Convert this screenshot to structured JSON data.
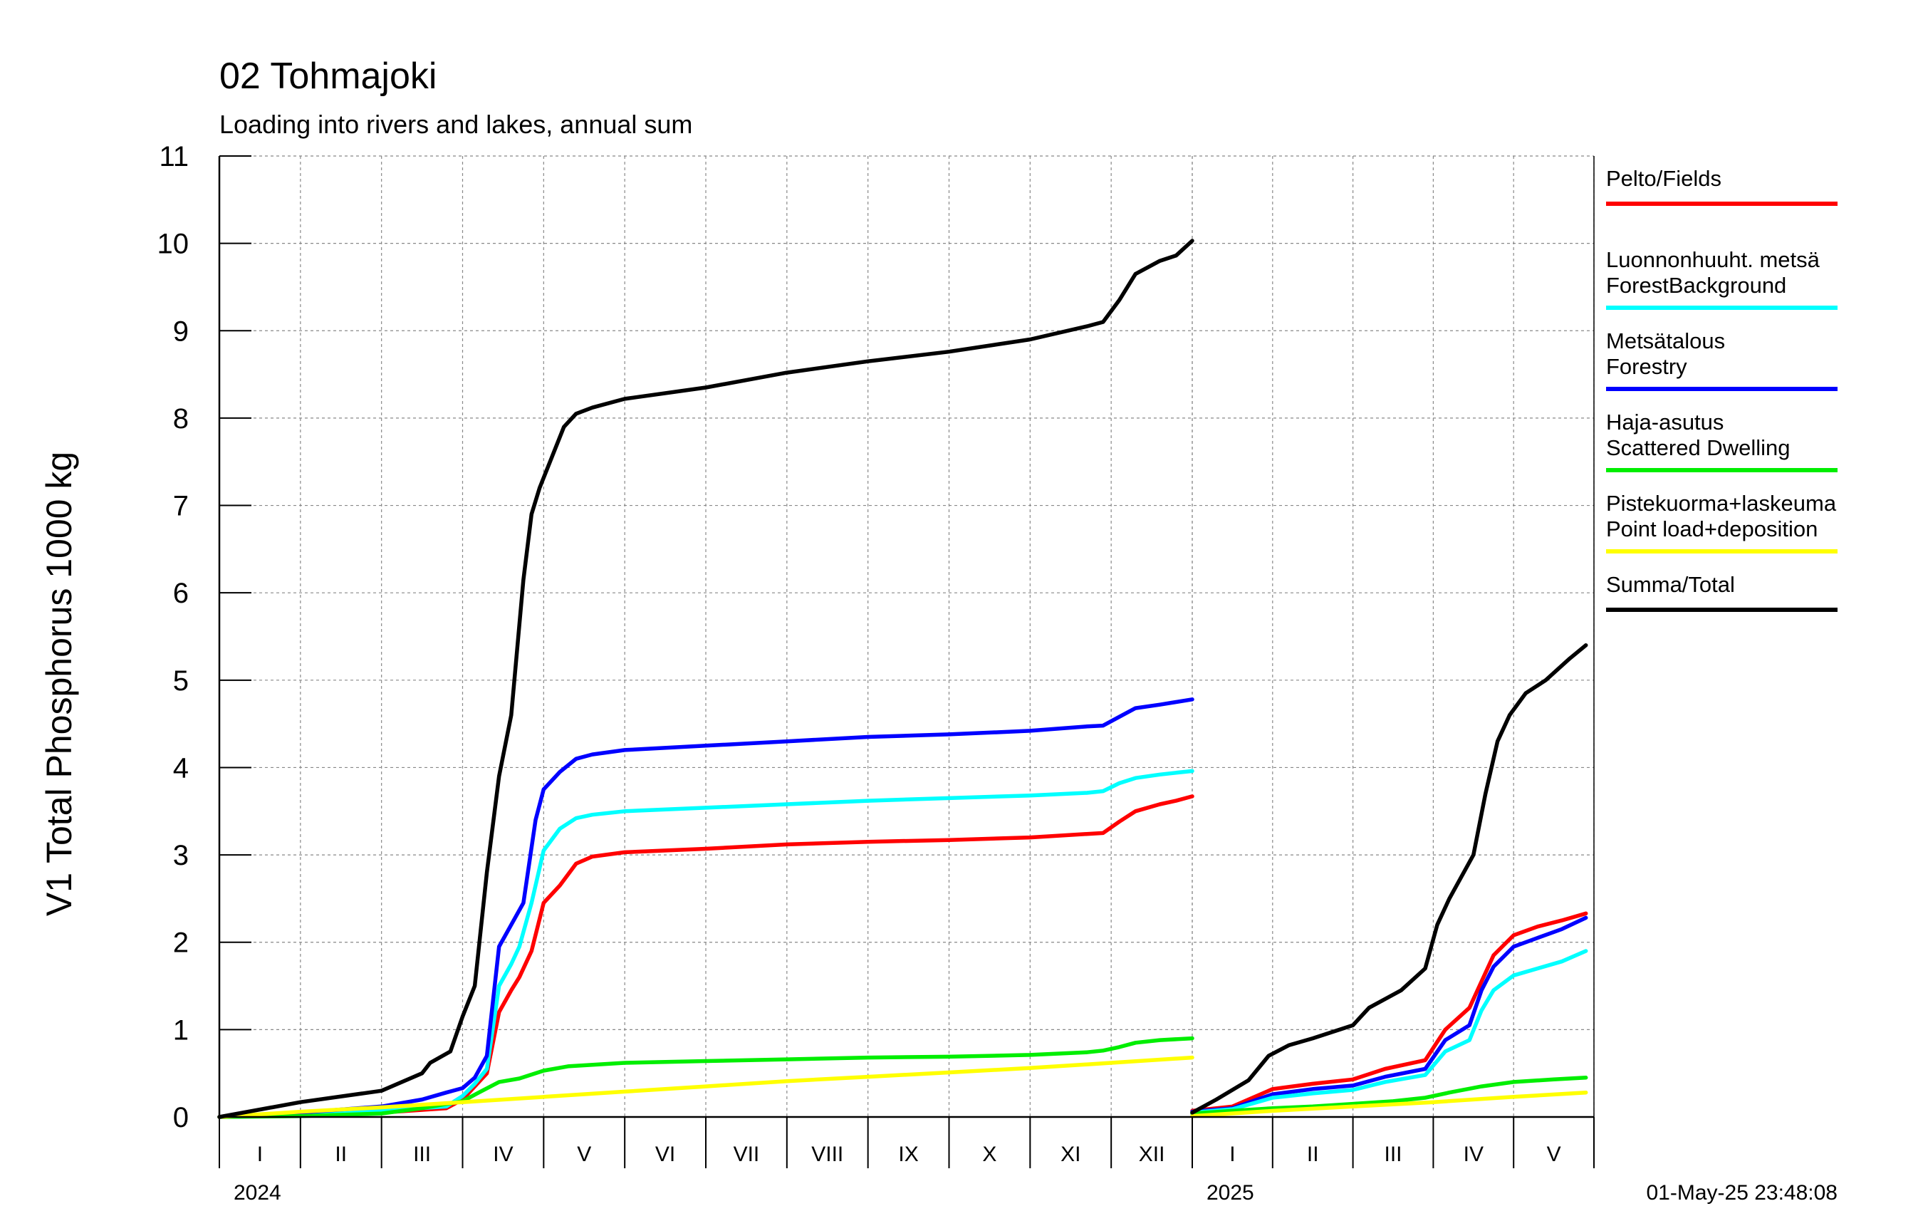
{
  "chart_data": {
    "type": "line",
    "title": "02 Tohmajoki",
    "subtitle": "Loading into rivers and lakes, annual sum",
    "ylabel": "V1 Total Phosphorus 1000 kg",
    "ylim": [
      0,
      11
    ],
    "yticks": [
      0,
      1,
      2,
      3,
      4,
      5,
      6,
      7,
      8,
      9,
      10,
      11
    ],
    "grid": true,
    "legend_position": "right",
    "timestamp": "01-May-25 23:48:08",
    "panels": [
      {
        "year": "2024",
        "months": [
          "I",
          "II",
          "III",
          "IV",
          "V",
          "VI",
          "VII",
          "VIII",
          "IX",
          "X",
          "XI",
          "XII"
        ],
        "series": [
          {
            "key": "fields",
            "color": "#ff0000",
            "x": [
              0,
              1,
              2,
              2.8,
              3.0,
              3.15,
              3.3,
              3.45,
              3.6,
              3.7,
              3.85,
              4.0,
              4.2,
              4.4,
              4.6,
              5,
              6,
              7,
              8,
              9,
              10,
              10.7,
              10.9,
              11.1,
              11.3,
              11.6,
              11.8,
              12
            ],
            "y": [
              0,
              0.02,
              0.05,
              0.1,
              0.2,
              0.35,
              0.5,
              1.2,
              1.45,
              1.6,
              1.9,
              2.45,
              2.65,
              2.9,
              2.98,
              3.03,
              3.07,
              3.12,
              3.15,
              3.17,
              3.2,
              3.24,
              3.25,
              3.38,
              3.5,
              3.58,
              3.62,
              3.67
            ]
          },
          {
            "key": "forest_background",
            "color": "#00ffff",
            "x": [
              0,
              1,
              2,
              2.8,
              3.0,
              3.15,
              3.3,
              3.45,
              3.6,
              3.7,
              3.85,
              4.0,
              4.2,
              4.4,
              4.6,
              5,
              6,
              7,
              8,
              9,
              10,
              10.7,
              10.9,
              11.1,
              11.3,
              11.6,
              11.8,
              12
            ],
            "y": [
              0,
              0.03,
              0.07,
              0.12,
              0.24,
              0.38,
              0.55,
              1.5,
              1.75,
              1.95,
              2.45,
              3.05,
              3.3,
              3.42,
              3.46,
              3.5,
              3.54,
              3.58,
              3.62,
              3.65,
              3.68,
              3.71,
              3.73,
              3.82,
              3.88,
              3.92,
              3.94,
              3.96
            ]
          },
          {
            "key": "forestry",
            "color": "#0000ff",
            "x": [
              0,
              1,
              2,
              2.5,
              2.8,
              3.0,
              3.15,
              3.3,
              3.45,
              3.6,
              3.75,
              3.9,
              4.0,
              4.2,
              4.4,
              4.6,
              5,
              6,
              7,
              8,
              9,
              10,
              10.7,
              10.9,
              11.1,
              11.3,
              11.6,
              11.8,
              12
            ],
            "y": [
              0,
              0.05,
              0.12,
              0.2,
              0.28,
              0.33,
              0.45,
              0.7,
              1.95,
              2.2,
              2.45,
              3.4,
              3.75,
              3.95,
              4.1,
              4.15,
              4.2,
              4.25,
              4.3,
              4.35,
              4.38,
              4.42,
              4.47,
              4.48,
              4.58,
              4.68,
              4.72,
              4.75,
              4.78
            ]
          },
          {
            "key": "scattered_dwelling",
            "color": "#00ee00",
            "x": [
              0,
              1,
              2,
              2.5,
              3.0,
              3.2,
              3.45,
              3.7,
              4.0,
              4.3,
              5,
              6,
              7,
              8,
              9,
              10,
              10.7,
              10.9,
              11.1,
              11.3,
              11.6,
              12
            ],
            "y": [
              0,
              0.01,
              0.04,
              0.1,
              0.18,
              0.28,
              0.4,
              0.44,
              0.53,
              0.58,
              0.62,
              0.64,
              0.66,
              0.68,
              0.69,
              0.71,
              0.74,
              0.76,
              0.8,
              0.85,
              0.88,
              0.9
            ]
          },
          {
            "key": "point_load",
            "color": "#ffff00",
            "x": [
              0,
              1,
              2,
              3,
              4,
              5,
              6,
              7,
              8,
              9,
              10,
              11,
              12
            ],
            "y": [
              0,
              0.06,
              0.11,
              0.17,
              0.23,
              0.29,
              0.35,
              0.41,
              0.46,
              0.51,
              0.56,
              0.62,
              0.68
            ]
          },
          {
            "key": "total",
            "color": "#000000",
            "x": [
              0,
              1,
              2,
              2.5,
              2.6,
              2.85,
              3.0,
              3.15,
              3.3,
              3.45,
              3.6,
              3.75,
              3.85,
              3.95,
              4.1,
              4.25,
              4.4,
              4.6,
              5,
              6,
              7,
              8,
              9,
              10,
              10.7,
              10.9,
              11.1,
              11.3,
              11.6,
              11.8,
              12
            ],
            "y": [
              0,
              0.17,
              0.3,
              0.5,
              0.62,
              0.75,
              1.15,
              1.5,
              2.8,
              3.9,
              4.6,
              6.15,
              6.9,
              7.2,
              7.55,
              7.9,
              8.05,
              8.12,
              8.22,
              8.35,
              8.52,
              8.65,
              8.76,
              8.9,
              9.05,
              9.1,
              9.35,
              9.65,
              9.8,
              9.86,
              10.03
            ]
          }
        ]
      },
      {
        "year": "2025",
        "months": [
          "I",
          "II",
          "III",
          "IV",
          "V"
        ],
        "series": [
          {
            "key": "fields",
            "color": "#ff0000",
            "x": [
              0,
              0.5,
              1.0,
              1.5,
              2.0,
              2.4,
              2.9,
              3.15,
              3.45,
              3.6,
              3.75,
              4.0,
              4.3,
              4.6,
              4.9
            ],
            "y": [
              0.07,
              0.12,
              0.32,
              0.38,
              0.43,
              0.55,
              0.65,
              1.0,
              1.25,
              1.55,
              1.85,
              2.08,
              2.18,
              2.25,
              2.33
            ]
          },
          {
            "key": "forestry",
            "color": "#0000ff",
            "x": [
              0,
              0.5,
              1.0,
              1.5,
              2.0,
              2.4,
              2.9,
              3.15,
              3.45,
              3.6,
              3.75,
              4.0,
              4.3,
              4.6,
              4.9
            ],
            "y": [
              0.06,
              0.1,
              0.26,
              0.32,
              0.36,
              0.46,
              0.55,
              0.88,
              1.05,
              1.45,
              1.72,
              1.95,
              2.05,
              2.15,
              2.28
            ]
          },
          {
            "key": "forest_background",
            "color": "#00ffff",
            "x": [
              0,
              0.5,
              1.0,
              1.5,
              2.0,
              2.4,
              2.9,
              3.15,
              3.45,
              3.6,
              3.75,
              4.0,
              4.3,
              4.6,
              4.9
            ],
            "y": [
              0.05,
              0.09,
              0.22,
              0.27,
              0.31,
              0.4,
              0.48,
              0.75,
              0.88,
              1.22,
              1.45,
              1.62,
              1.7,
              1.78,
              1.9
            ]
          },
          {
            "key": "scattered_dwelling",
            "color": "#00ee00",
            "x": [
              0,
              0.5,
              1.0,
              1.5,
              2.0,
              2.5,
              2.9,
              3.2,
              3.6,
              4.0,
              4.5,
              4.9
            ],
            "y": [
              0.04,
              0.07,
              0.1,
              0.12,
              0.15,
              0.18,
              0.22,
              0.28,
              0.35,
              0.4,
              0.43,
              0.45
            ]
          },
          {
            "key": "point_load",
            "color": "#ffff00",
            "x": [
              0,
              1,
              2,
              3,
              4,
              4.9
            ],
            "y": [
              0.01,
              0.07,
              0.12,
              0.17,
              0.23,
              0.28
            ]
          },
          {
            "key": "total",
            "color": "#000000",
            "x": [
              0,
              0.3,
              0.7,
              0.95,
              1.2,
              1.5,
              2.0,
              2.2,
              2.6,
              2.9,
              3.05,
              3.2,
              3.5,
              3.65,
              3.8,
              3.95,
              4.15,
              4.4,
              4.7,
              4.9
            ],
            "y": [
              0.05,
              0.2,
              0.42,
              0.7,
              0.82,
              0.9,
              1.05,
              1.25,
              1.45,
              1.7,
              2.2,
              2.5,
              3.0,
              3.7,
              4.3,
              4.6,
              4.85,
              5.0,
              5.25,
              5.4
            ]
          }
        ]
      }
    ],
    "legend": [
      {
        "key": "fields",
        "line1": "Pelto/Fields",
        "line2": "",
        "color": "#ff0000"
      },
      {
        "key": "forest_background",
        "line1": "Luonnonhuuht. metsä",
        "line2": "ForestBackground",
        "color": "#00ffff"
      },
      {
        "key": "forestry",
        "line1": "Metsätalous",
        "line2": "Forestry",
        "color": "#0000ff"
      },
      {
        "key": "scattered_dwelling",
        "line1": "Haja-asutus",
        "line2": "Scattered Dwelling",
        "color": "#00ee00"
      },
      {
        "key": "point_load",
        "line1": "Pistekuorma+laskeuma",
        "line2": "Point load+deposition",
        "color": "#ffff00"
      },
      {
        "key": "total",
        "line1": "Summa/Total",
        "line2": "",
        "color": "#000000"
      }
    ]
  }
}
